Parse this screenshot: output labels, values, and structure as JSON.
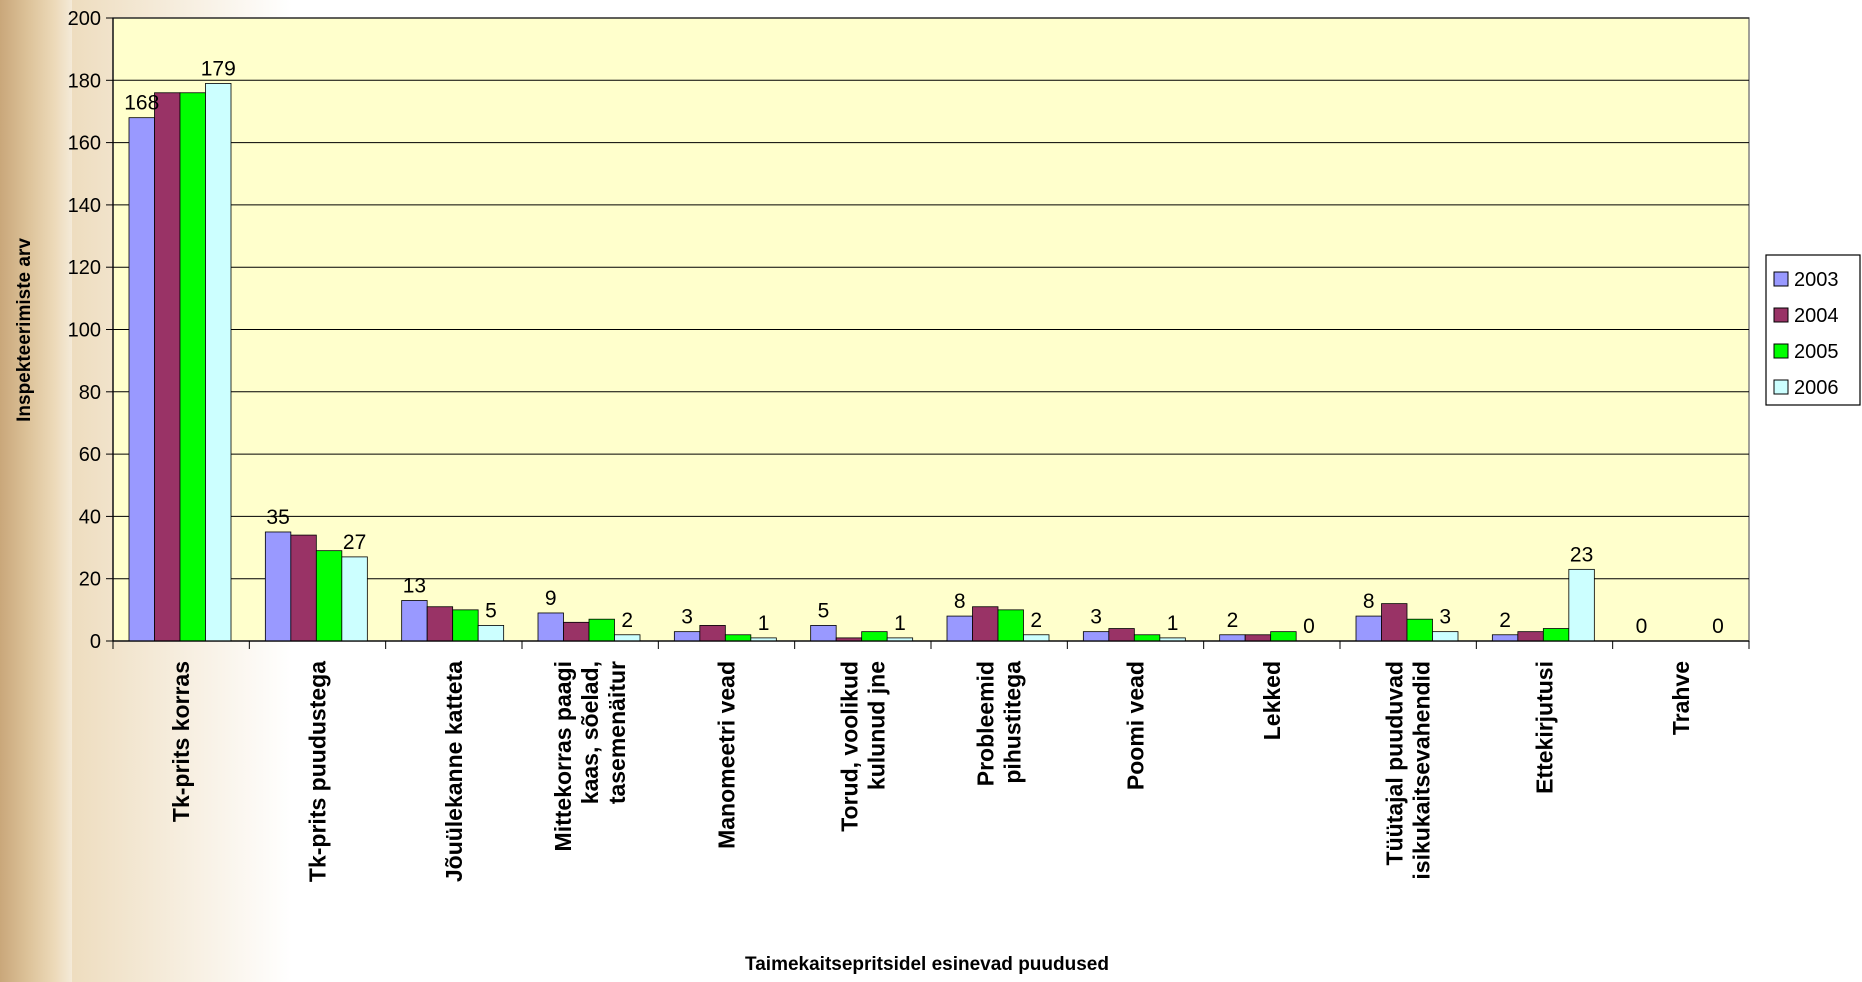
{
  "chart_data": {
    "type": "bar",
    "xlabel": "Taimekaitsepritsidel esinevad puudused",
    "ylabel": "Inspekteerimiste arv",
    "ylim": [
      0,
      200
    ],
    "yticks": [
      "0",
      "20",
      "40",
      "60",
      "80",
      "100",
      "120",
      "140",
      "160",
      "180",
      "200"
    ],
    "grid": true,
    "legend_position": "right",
    "categories": [
      [
        "Tk-prits korras"
      ],
      [
        "Tk-prits puudustega"
      ],
      [
        "Jõuülekanne katteta"
      ],
      [
        "Mittekorras paagi",
        "kaas, sõelad,",
        "tasemenäitur"
      ],
      [
        "Manomeetri vead"
      ],
      [
        "Torud, voolikud",
        "kulunud jne"
      ],
      [
        "Probleemid",
        "pihustitega"
      ],
      [
        "Poomi vead"
      ],
      [
        "Lekked"
      ],
      [
        "Tüütajal puuduvad",
        "isikukaitsevahendid"
      ],
      [
        "Ettekirjutusi"
      ],
      [
        "Trahve"
      ]
    ],
    "series": [
      {
        "name": "2003",
        "color": "#9999ff",
        "values": [
          168,
          35,
          13,
          9,
          3,
          5,
          8,
          3,
          2,
          8,
          2,
          0
        ]
      },
      {
        "name": "2004",
        "color": "#993366",
        "values": [
          176,
          34,
          11,
          6,
          5,
          1,
          11,
          4,
          2,
          12,
          3,
          0
        ]
      },
      {
        "name": "2005",
        "color": "#00ff00",
        "values": [
          176,
          29,
          10,
          7,
          2,
          3,
          10,
          2,
          3,
          7,
          4,
          0
        ]
      },
      {
        "name": "2006",
        "color": "#ccffff",
        "values": [
          179,
          27,
          5,
          2,
          1,
          1,
          2,
          1,
          0,
          3,
          23,
          0
        ]
      }
    ],
    "data_labels": [
      {
        "cat": 0,
        "series": 0,
        "text": "168"
      },
      {
        "cat": 0,
        "series": 3,
        "text": "179"
      },
      {
        "cat": 1,
        "series": 0,
        "text": "35"
      },
      {
        "cat": 1,
        "series": 3,
        "text": "27"
      },
      {
        "cat": 2,
        "series": 0,
        "text": "13"
      },
      {
        "cat": 2,
        "series": 3,
        "text": "5"
      },
      {
        "cat": 3,
        "series": 0,
        "text": "9"
      },
      {
        "cat": 3,
        "series": 3,
        "text": "2"
      },
      {
        "cat": 4,
        "series": 0,
        "text": "3"
      },
      {
        "cat": 4,
        "series": 3,
        "text": "1"
      },
      {
        "cat": 5,
        "series": 0,
        "text": "5"
      },
      {
        "cat": 5,
        "series": 3,
        "text": "1"
      },
      {
        "cat": 6,
        "series": 0,
        "text": "8"
      },
      {
        "cat": 6,
        "series": 3,
        "text": "2"
      },
      {
        "cat": 7,
        "series": 0,
        "text": "3"
      },
      {
        "cat": 7,
        "series": 3,
        "text": "1"
      },
      {
        "cat": 8,
        "series": 0,
        "text": "2"
      },
      {
        "cat": 8,
        "series": 3,
        "text": "0"
      },
      {
        "cat": 9,
        "series": 0,
        "text": "8"
      },
      {
        "cat": 9,
        "series": 3,
        "text": "3"
      },
      {
        "cat": 10,
        "series": 0,
        "text": "2"
      },
      {
        "cat": 10,
        "series": 3,
        "text": "23"
      },
      {
        "cat": 11,
        "series": 0,
        "text": "0"
      },
      {
        "cat": 11,
        "series": 3,
        "text": "0"
      }
    ],
    "colors": {
      "plot_background": "#ffffcc",
      "gridline": "#000000",
      "bar_outline": "#000000"
    }
  }
}
